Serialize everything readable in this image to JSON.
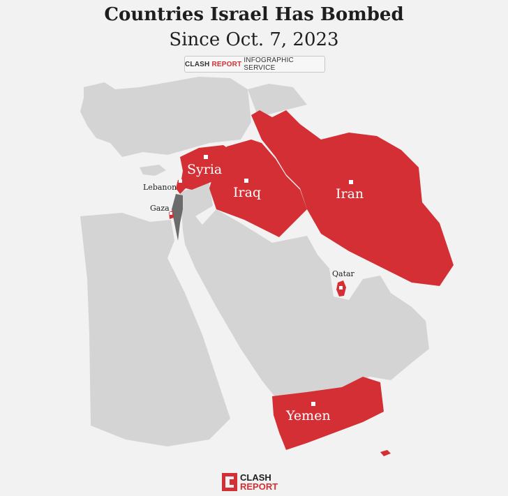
{
  "header": {
    "title": "Countries Israel Has Bombed",
    "subtitle": "Since Oct. 7, 2023"
  },
  "badge": {
    "part1": "CLASH",
    "part2": "REPORT",
    "part3": "INFOGRAPHIC SERVICE"
  },
  "map": {
    "countries_bombed": [
      {
        "name": "Syria"
      },
      {
        "name": "Iraq"
      },
      {
        "name": "Iran"
      },
      {
        "name": "Yemen"
      },
      {
        "name": "Lebanon"
      },
      {
        "name": "Gaza"
      },
      {
        "name": "Qatar"
      }
    ],
    "colors": {
      "bombed": "#d32f35",
      "other_land": "#d4d4d4",
      "israel": "#6b6b6b",
      "background": "#f2f2f2"
    }
  },
  "logo": {
    "line1": "CLASH",
    "line2": "REPORT"
  }
}
